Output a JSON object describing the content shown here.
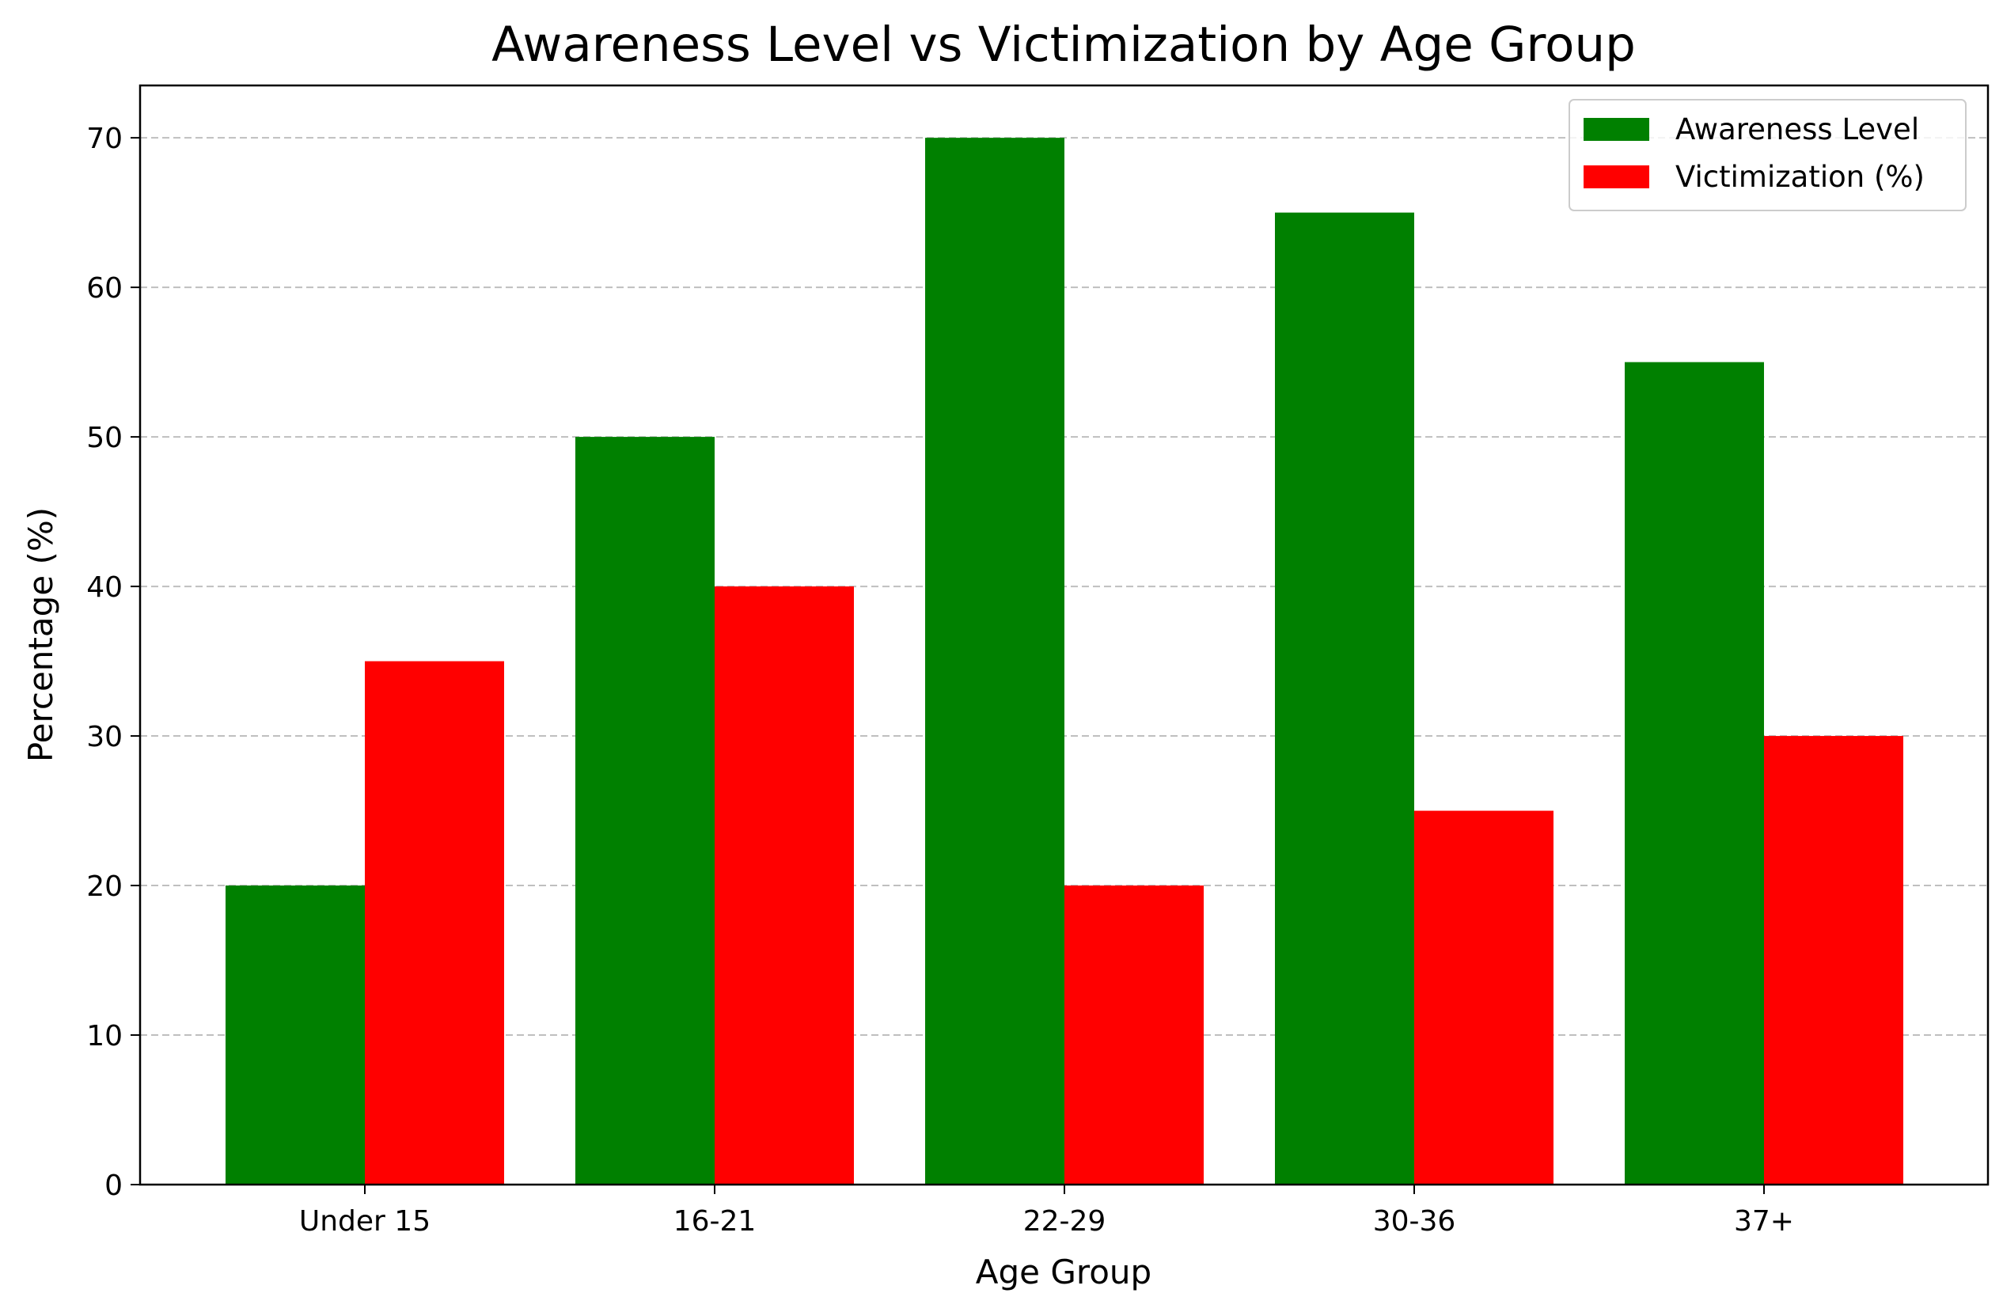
{
  "chart_data": {
    "type": "bar",
    "title": "Awareness Level vs Victimization by Age Group",
    "xlabel": "Age Group",
    "ylabel": "Percentage (%)",
    "categories": [
      "Under 15",
      "16-21",
      "22-29",
      "30-36",
      "37+"
    ],
    "series": [
      {
        "name": "Awareness Level",
        "color": "#008000",
        "values": [
          20,
          50,
          70,
          65,
          55
        ]
      },
      {
        "name": "Victimization (%)",
        "color": "#ff0000",
        "values": [
          35,
          40,
          20,
          25,
          30
        ]
      }
    ],
    "ylim": [
      0,
      73.5
    ],
    "yticks": [
      0,
      10,
      20,
      30,
      40,
      50,
      60,
      70
    ],
    "grid": {
      "y": true,
      "x": false,
      "style": "dashed",
      "color": "#bfbfbf"
    },
    "legend": {
      "position": "top-right"
    }
  }
}
